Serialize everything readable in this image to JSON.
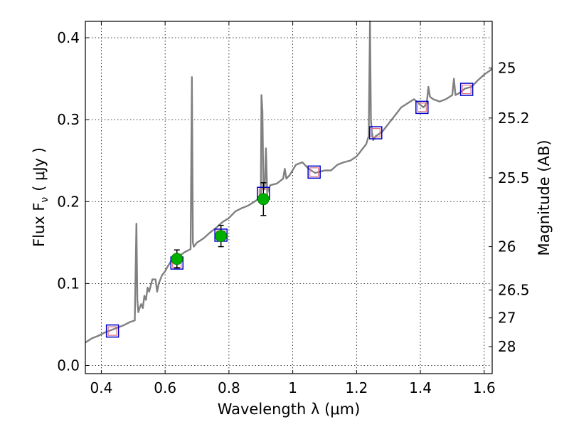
{
  "chart_data": {
    "type": "line",
    "xlabel": "Wavelength  λ (μm)",
    "ylabel": "Flux  F",
    "ylabel_sub": "ν",
    "ylabel_unit": "( μJy )",
    "y2label": "Magnitude (AB)",
    "xlim": [
      0.35,
      1.625
    ],
    "ylim": [
      -0.01,
      0.42
    ],
    "grid": true,
    "x_ticks": [
      0.4,
      0.6,
      0.8,
      1.0,
      1.2,
      1.4,
      1.6
    ],
    "x_tick_labels": [
      "0.4",
      "0.6",
      "0.8",
      "1",
      "1.2",
      "1.4",
      "1.6"
    ],
    "y_ticks": [
      0.0,
      0.1,
      0.2,
      0.3,
      0.4
    ],
    "y_tick_labels": [
      "0.0",
      "0.1",
      "0.2",
      "0.3",
      "0.4"
    ],
    "y2_ticks": [
      {
        "label": "25",
        "flux": 0.363
      },
      {
        "label": "25.2",
        "flux": 0.302
      },
      {
        "label": "25.5",
        "flux": 0.229
      },
      {
        "label": "26",
        "flux": 0.145
      },
      {
        "label": "26.5",
        "flux": 0.092
      },
      {
        "label": "27",
        "flux": 0.058
      },
      {
        "label": "28",
        "flux": 0.023
      }
    ],
    "colors": {
      "spectrum": "#808080",
      "model_box": "#0000cc",
      "model_inner": "#e0707a",
      "observed": "#00b000",
      "errorbar": "#000000"
    },
    "series": [
      {
        "kind": "spectrum",
        "x": [
          0.35,
          0.37,
          0.39,
          0.41,
          0.43,
          0.45,
          0.47,
          0.49,
          0.505,
          0.51,
          0.513,
          0.516,
          0.52,
          0.525,
          0.53,
          0.535,
          0.54,
          0.545,
          0.55,
          0.56,
          0.57,
          0.575,
          0.58,
          0.59,
          0.6,
          0.61,
          0.62,
          0.63,
          0.64,
          0.65,
          0.66,
          0.67,
          0.68,
          0.684,
          0.687,
          0.69,
          0.7,
          0.72,
          0.74,
          0.76,
          0.78,
          0.8,
          0.82,
          0.84,
          0.86,
          0.88,
          0.9,
          0.902,
          0.905,
          0.908,
          0.912,
          0.916,
          0.92,
          0.924,
          0.93,
          0.95,
          0.97,
          0.975,
          0.98,
          0.99,
          1.01,
          1.03,
          1.05,
          1.07,
          1.09,
          1.1,
          1.12,
          1.14,
          1.16,
          1.18,
          1.2,
          1.22,
          1.23,
          1.238,
          1.242,
          1.245,
          1.248,
          1.252,
          1.26,
          1.28,
          1.3,
          1.32,
          1.34,
          1.36,
          1.38,
          1.4,
          1.41,
          1.42,
          1.425,
          1.43,
          1.44,
          1.46,
          1.48,
          1.5,
          1.505,
          1.51,
          1.52,
          1.54,
          1.56,
          1.58,
          1.6,
          1.625
        ],
        "y": [
          0.028,
          0.033,
          0.036,
          0.04,
          0.043,
          0.046,
          0.049,
          0.053,
          0.055,
          0.173,
          0.08,
          0.065,
          0.07,
          0.075,
          0.07,
          0.085,
          0.08,
          0.095,
          0.09,
          0.105,
          0.105,
          0.09,
          0.1,
          0.11,
          0.115,
          0.122,
          0.128,
          0.13,
          0.135,
          0.135,
          0.138,
          0.14,
          0.142,
          0.352,
          0.15,
          0.145,
          0.15,
          0.155,
          0.162,
          0.168,
          0.175,
          0.18,
          0.188,
          0.192,
          0.195,
          0.2,
          0.205,
          0.33,
          0.31,
          0.215,
          0.215,
          0.265,
          0.21,
          0.215,
          0.22,
          0.222,
          0.228,
          0.24,
          0.228,
          0.232,
          0.245,
          0.248,
          0.24,
          0.235,
          0.237,
          0.238,
          0.238,
          0.245,
          0.248,
          0.25,
          0.255,
          0.265,
          0.27,
          0.28,
          0.42,
          0.3,
          0.285,
          0.275,
          0.28,
          0.285,
          0.295,
          0.305,
          0.315,
          0.32,
          0.325,
          0.318,
          0.315,
          0.32,
          0.34,
          0.328,
          0.325,
          0.322,
          0.325,
          0.33,
          0.35,
          0.33,
          0.332,
          0.338,
          0.34,
          0.348,
          0.355,
          0.362
        ]
      },
      {
        "kind": "model_photometry",
        "x": [
          0.435,
          0.637,
          0.775,
          0.908,
          1.067,
          1.26,
          1.405,
          1.545
        ],
        "y": [
          0.042,
          0.125,
          0.159,
          0.21,
          0.236,
          0.284,
          0.315,
          0.337
        ]
      },
      {
        "kind": "observed_photometry",
        "x": [
          0.637,
          0.775,
          0.908
        ],
        "y": [
          0.13,
          0.158,
          0.203
        ],
        "yerr": [
          0.011,
          0.013,
          0.02
        ]
      }
    ]
  }
}
